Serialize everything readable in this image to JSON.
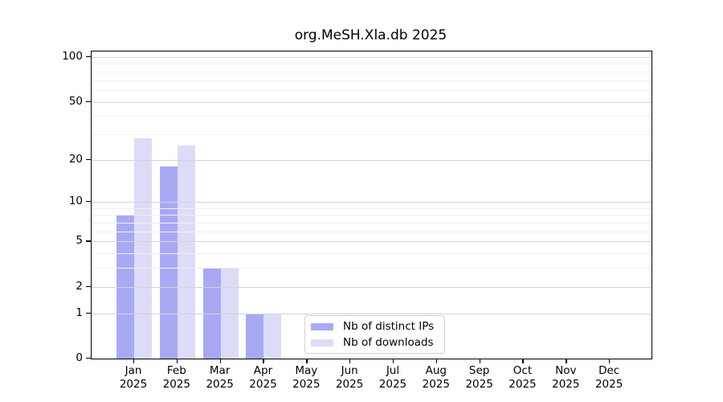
{
  "chart_data": {
    "type": "bar",
    "title": "org.MeSH.Xla.db 2025",
    "y_scale": "log1p",
    "ylim": [
      0,
      100
    ],
    "grid": true,
    "legend_position": "bottom-center-inside",
    "categories": [
      "Jan",
      "Feb",
      "Mar",
      "Apr",
      "May",
      "Jun",
      "Jul",
      "Aug",
      "Sep",
      "Oct",
      "Nov",
      "Dec"
    ],
    "category_year": "2025",
    "series": [
      {
        "name": "Nb of distinct IPs",
        "color": "#a9a9f3",
        "values": [
          8,
          18,
          3,
          1,
          0,
          0,
          0,
          0,
          0,
          0,
          0,
          0
        ]
      },
      {
        "name": "Nb of downloads",
        "color": "#dcdcf8",
        "values": [
          28,
          25,
          3,
          1,
          0,
          0,
          0,
          0,
          0,
          0,
          0,
          0
        ]
      }
    ],
    "y_tick_labels": [
      "100",
      "50",
      "20",
      "10",
      "5",
      "2",
      "1",
      "0"
    ],
    "y_tick_values": [
      100,
      50,
      20,
      10,
      5,
      2,
      1,
      0
    ],
    "y_major_gridlines": [
      1,
      2,
      5,
      10,
      20,
      50,
      100
    ],
    "y_minor_gridlines": [
      3,
      4,
      6,
      7,
      8,
      9,
      30,
      40,
      60,
      70,
      80,
      90
    ]
  },
  "colors": {
    "major_grid": "#d4d4d4",
    "minor_grid": "#efefef",
    "axis": "#000000",
    "background": "#ffffff"
  }
}
